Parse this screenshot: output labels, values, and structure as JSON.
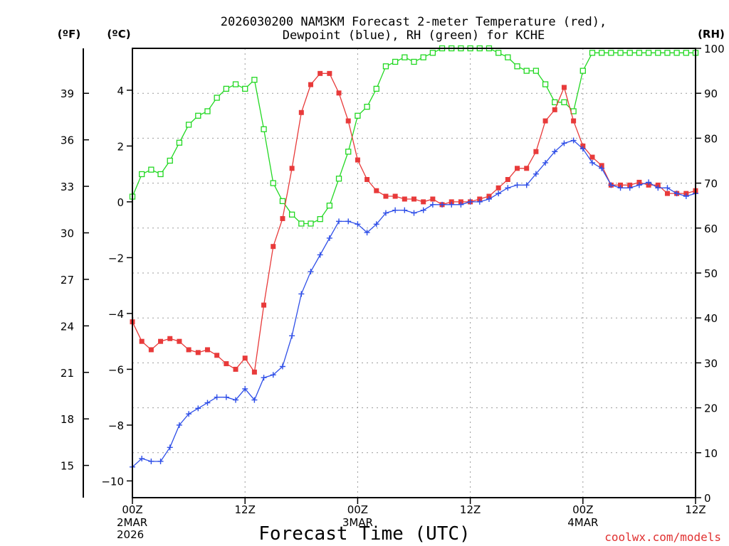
{
  "chart_data": {
    "type": "line",
    "title_line1": "2026030200 NAM3KM Forecast 2-meter Temperature (red),",
    "title_line2": "Dewpoint (blue), RH (green) for KCHE",
    "xlabel": "Forecast Time (UTC)",
    "credit": "coolwx.com/models",
    "units": {
      "left_f": "(ºF)",
      "left_c": "(ºC)",
      "right": "(RH)"
    },
    "xlim": [
      0,
      60
    ],
    "ylim_c": [
      -10.6,
      5.5
    ],
    "ylim_rh": [
      0,
      100
    ],
    "yticks_f": [
      "15",
      "18",
      "21",
      "24",
      "27",
      "30",
      "33",
      "36",
      "39"
    ],
    "yticks_c": [
      "−10",
      "−8",
      "−6",
      "−4",
      "−2",
      "0",
      "2",
      "4"
    ],
    "yticks_rh": [
      "0",
      "10",
      "20",
      "30",
      "40",
      "50",
      "60",
      "70",
      "80",
      "90",
      "100"
    ],
    "xticks": [
      {
        "hour": 0,
        "label": "00Z",
        "sub1": "2MAR",
        "sub2": "2026"
      },
      {
        "hour": 12,
        "label": "12Z",
        "sub1": "",
        "sub2": ""
      },
      {
        "hour": 24,
        "label": "00Z",
        "sub1": "3MAR",
        "sub2": ""
      },
      {
        "hour": 36,
        "label": "12Z",
        "sub1": "",
        "sub2": ""
      },
      {
        "hour": 48,
        "label": "00Z",
        "sub1": "4MAR",
        "sub2": ""
      },
      {
        "hour": 60,
        "label": "12Z",
        "sub1": "",
        "sub2": ""
      }
    ],
    "series": [
      {
        "name": "Temperature",
        "color": "#e83a3a",
        "marker": "filled-square",
        "values": [
          -4.3,
          -5.0,
          -5.3,
          -5.0,
          -4.9,
          -5.0,
          -5.3,
          -5.4,
          -5.3,
          -5.5,
          -5.8,
          -6.0,
          -5.6,
          -6.1,
          -3.7,
          -1.6,
          -0.6,
          1.2,
          3.2,
          4.2,
          4.6,
          4.6,
          3.9,
          2.9,
          1.5,
          0.8,
          0.4,
          0.2,
          0.2,
          0.1,
          0.1,
          0.0,
          0.1,
          -0.1,
          0.0,
          0.0,
          0.0,
          0.1,
          0.2,
          0.5,
          0.8,
          1.2,
          1.2,
          1.8,
          2.9,
          3.3,
          4.1,
          2.9,
          2.0,
          1.6,
          1.3,
          0.6,
          0.6,
          0.6,
          0.7,
          0.6,
          0.6,
          0.3,
          0.3,
          0.3,
          0.4
        ]
      },
      {
        "name": "Dewpoint",
        "color": "#2f4fe8",
        "marker": "plus",
        "values": [
          -9.5,
          -9.2,
          -9.3,
          -9.3,
          -8.8,
          -8.0,
          -7.6,
          -7.4,
          -7.2,
          -7.0,
          -7.0,
          -7.1,
          -6.7,
          -7.1,
          -6.3,
          -6.2,
          -5.9,
          -4.8,
          -3.3,
          -2.5,
          -1.9,
          -1.3,
          -0.7,
          -0.7,
          -0.8,
          -1.1,
          -0.8,
          -0.4,
          -0.3,
          -0.3,
          -0.4,
          -0.3,
          -0.1,
          -0.1,
          -0.1,
          -0.1,
          -0.0,
          0.0,
          0.1,
          0.3,
          0.5,
          0.6,
          0.6,
          1.0,
          1.4,
          1.8,
          2.1,
          2.2,
          1.9,
          1.4,
          1.2,
          0.6,
          0.5,
          0.5,
          0.6,
          0.7,
          0.5,
          0.5,
          0.3,
          0.2,
          0.3
        ]
      },
      {
        "name": "RH",
        "color": "#22d822",
        "marker": "open-square",
        "values": [
          67,
          72,
          73,
          72,
          75,
          79,
          83,
          85,
          86,
          89,
          91,
          92,
          91,
          93,
          82,
          70,
          66,
          63,
          61,
          61,
          62,
          65,
          71,
          77,
          85,
          87,
          91,
          96,
          97,
          98,
          97,
          98,
          99,
          100,
          100,
          100,
          100,
          100,
          100,
          99,
          98,
          96,
          95,
          95,
          92,
          88,
          88,
          86,
          95,
          99,
          99,
          99,
          99,
          99,
          99,
          99,
          99,
          99,
          99,
          99,
          99
        ]
      }
    ]
  }
}
